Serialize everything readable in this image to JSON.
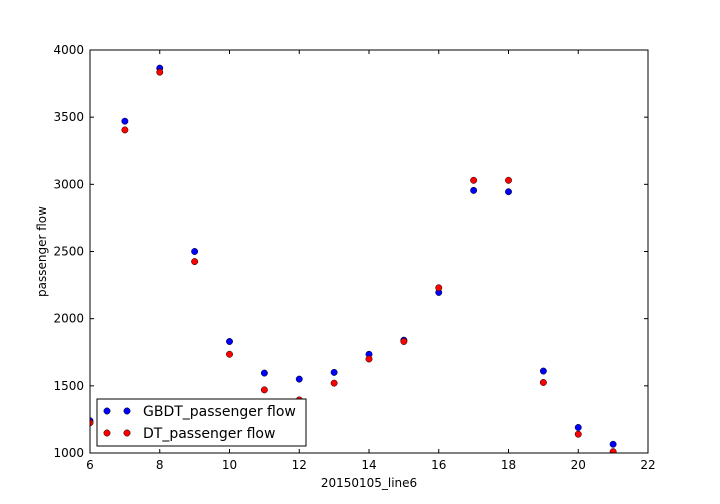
{
  "chart_data": {
    "type": "scatter",
    "title": "",
    "xlabel": "20150105_line6",
    "ylabel": "passenger flow",
    "xlim": [
      6,
      22
    ],
    "ylim": [
      1000,
      4000
    ],
    "xticks": [
      "6",
      "8",
      "10",
      "12",
      "14",
      "16",
      "18",
      "20",
      "22"
    ],
    "yticks": [
      "1000",
      "1500",
      "2000",
      "2500",
      "3000",
      "3500",
      "4000"
    ],
    "grid": false,
    "legend_position": "lower-left",
    "x": [
      6,
      7,
      8,
      9,
      10,
      11,
      12,
      13,
      14,
      15,
      16,
      17,
      18,
      19,
      20,
      21
    ],
    "series": [
      {
        "name": "GBDT_passenger flow",
        "color": "#0000ff",
        "values": [
          1240,
          3470,
          3865,
          2500,
          1830,
          1595,
          1550,
          1600,
          1735,
          1840,
          2195,
          2955,
          2945,
          1610,
          1190,
          1065
        ]
      },
      {
        "name": "DT_passenger flow",
        "color": "#ff0000",
        "values": [
          1225,
          3405,
          3835,
          2425,
          1735,
          1470,
          1395,
          1520,
          1700,
          1830,
          2230,
          3030,
          3030,
          1525,
          1140,
          1010
        ]
      }
    ]
  }
}
